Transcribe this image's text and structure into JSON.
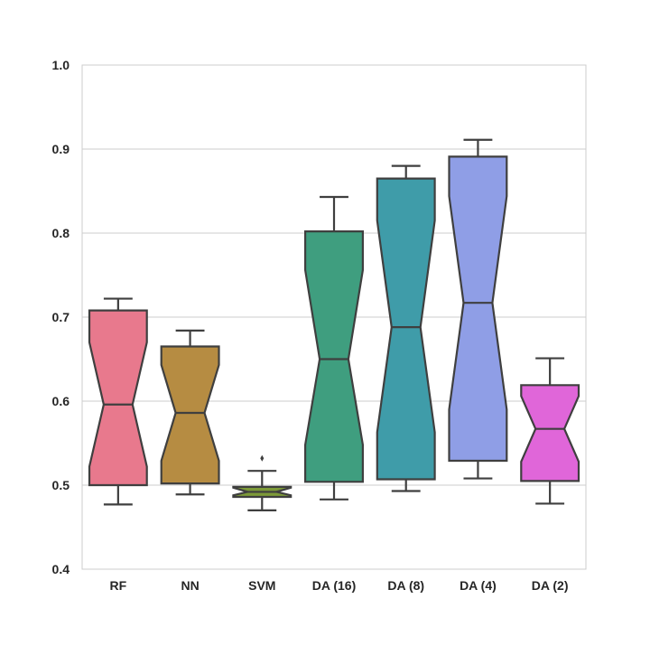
{
  "chart_data": {
    "type": "boxplot",
    "notched": true,
    "grid": true,
    "ylim": [
      0.4,
      1.0
    ],
    "yticks": [
      "0.4",
      "0.5",
      "0.6",
      "0.7",
      "0.8",
      "0.9",
      "1.0"
    ],
    "categories": [
      "RF",
      "NN",
      "SVM",
      "DA (16)",
      "DA (8)",
      "DA (4)",
      "DA (2)"
    ],
    "colors": [
      "#e8798d",
      "#b68c42",
      "#7d9a38",
      "#3f9e7f",
      "#3f9ca9",
      "#8f9ee6",
      "#e066d9"
    ],
    "series": [
      {
        "category": "RF",
        "whisker_low": 0.477,
        "q1": 0.5,
        "median": 0.596,
        "q3": 0.708,
        "whisker_high": 0.722,
        "notch_low": 0.522,
        "notch_high": 0.67,
        "outliers": []
      },
      {
        "category": "NN",
        "whisker_low": 0.489,
        "q1": 0.502,
        "median": 0.586,
        "q3": 0.665,
        "whisker_high": 0.684,
        "notch_low": 0.529,
        "notch_high": 0.643,
        "outliers": []
      },
      {
        "category": "SVM",
        "whisker_low": 0.47,
        "q1": 0.486,
        "median": 0.492,
        "q3": 0.498,
        "whisker_high": 0.517,
        "notch_low": 0.488,
        "notch_high": 0.497,
        "outliers": [
          0.532
        ]
      },
      {
        "category": "DA (16)",
        "whisker_low": 0.483,
        "q1": 0.504,
        "median": 0.65,
        "q3": 0.802,
        "whisker_high": 0.843,
        "notch_low": 0.548,
        "notch_high": 0.756,
        "outliers": []
      },
      {
        "category": "DA (8)",
        "whisker_low": 0.493,
        "q1": 0.507,
        "median": 0.688,
        "q3": 0.865,
        "whisker_high": 0.88,
        "notch_low": 0.563,
        "notch_high": 0.815,
        "outliers": []
      },
      {
        "category": "DA (4)",
        "whisker_low": 0.508,
        "q1": 0.529,
        "median": 0.717,
        "q3": 0.891,
        "whisker_high": 0.911,
        "notch_low": 0.59,
        "notch_high": 0.844,
        "outliers": []
      },
      {
        "category": "DA (2)",
        "whisker_low": 0.478,
        "q1": 0.505,
        "median": 0.567,
        "q3": 0.619,
        "whisker_high": 0.651,
        "notch_low": 0.528,
        "notch_high": 0.606,
        "outliers": []
      }
    ]
  }
}
